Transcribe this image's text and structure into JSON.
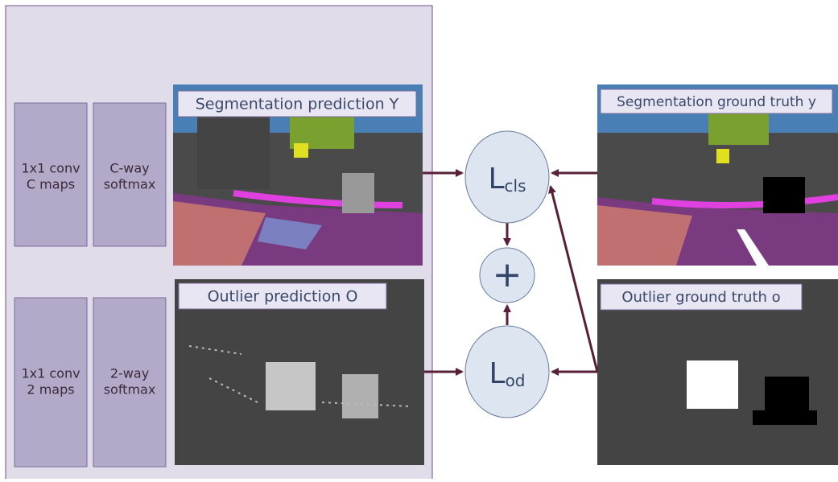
{
  "blocks": [
    {
      "line1": "1x1 conv",
      "line2": "C maps"
    },
    {
      "line1": "C-way",
      "line2": "softmax"
    },
    {
      "line1": "1x1 conv",
      "line2": "2 maps"
    },
    {
      "line1": "2-way",
      "line2": "softmax"
    }
  ],
  "images": {
    "seg_pred": "Segmentation prediction Y",
    "out_pred": "Outlier prediction O",
    "seg_gt": "Segmentation ground truth y",
    "out_gt": "Outlier ground truth o"
  },
  "losses": {
    "cls": {
      "symbol": "L",
      "subscript": "cls"
    },
    "plus": "+",
    "od": {
      "symbol": "L",
      "subscript": "od"
    }
  }
}
